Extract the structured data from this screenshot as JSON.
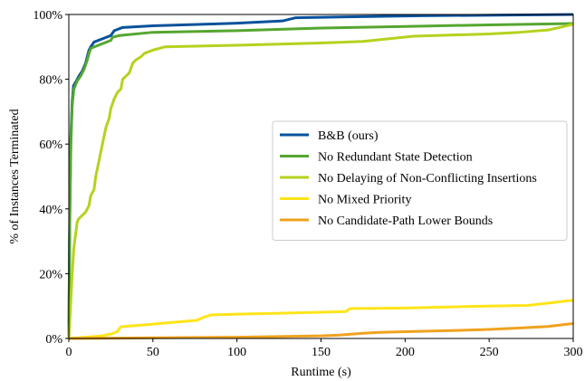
{
  "chart_data": {
    "type": "line",
    "title": "",
    "xlabel": "Runtime (s)",
    "ylabel": "% of Instances Terminated",
    "xlim": [
      0,
      300
    ],
    "ylim": [
      0,
      100
    ],
    "x_ticks": [
      0,
      50,
      100,
      150,
      200,
      250,
      300
    ],
    "x_tick_labels": [
      "0",
      "50",
      "100",
      "150",
      "200",
      "250",
      "300"
    ],
    "y_ticks": [
      0,
      20,
      40,
      60,
      80,
      100
    ],
    "y_tick_labels": [
      "0%",
      "20%",
      "40%",
      "60%",
      "80%",
      "100%"
    ],
    "grid": false,
    "legend_position": "center-right",
    "series": [
      {
        "name": "B&B (ours)",
        "color": "#08529c",
        "points": [
          [
            0,
            0
          ],
          [
            0.6,
            40
          ],
          [
            1.2,
            62
          ],
          [
            2,
            73
          ],
          [
            2.8,
            78
          ],
          [
            4.5,
            79.5
          ],
          [
            6,
            81
          ],
          [
            8,
            82.5
          ],
          [
            10,
            85
          ],
          [
            11,
            87
          ],
          [
            12,
            89
          ],
          [
            13,
            90
          ],
          [
            15,
            91.5
          ],
          [
            20,
            92.5
          ],
          [
            25,
            93.5
          ],
          [
            27,
            95
          ],
          [
            32,
            96
          ],
          [
            50,
            96.5
          ],
          [
            100,
            97.3
          ],
          [
            127,
            98
          ],
          [
            135,
            99
          ],
          [
            170,
            99.3
          ],
          [
            210,
            99.6
          ],
          [
            300,
            100
          ]
        ]
      },
      {
        "name": "No Redundant State Detection",
        "color": "#55a630",
        "points": [
          [
            0,
            0
          ],
          [
            0.6,
            38
          ],
          [
            1.2,
            60
          ],
          [
            2,
            72
          ],
          [
            3,
            77
          ],
          [
            5,
            79.5
          ],
          [
            7,
            81
          ],
          [
            9,
            83
          ],
          [
            11,
            86
          ],
          [
            12,
            88
          ],
          [
            13,
            89.5
          ],
          [
            15,
            90
          ],
          [
            20,
            91
          ],
          [
            25,
            92
          ],
          [
            26,
            93
          ],
          [
            30,
            93.5
          ],
          [
            50,
            94.5
          ],
          [
            100,
            95
          ],
          [
            150,
            95.8
          ],
          [
            200,
            96.3
          ],
          [
            250,
            96.8
          ],
          [
            300,
            97.2
          ]
        ]
      },
      {
        "name": "No Delaying of Non-Conflicting Insertions",
        "color": "#b5d21e",
        "points": [
          [
            0,
            0
          ],
          [
            1,
            10
          ],
          [
            2,
            20
          ],
          [
            3,
            28
          ],
          [
            4,
            32
          ],
          [
            5,
            36
          ],
          [
            6,
            37
          ],
          [
            8,
            38
          ],
          [
            10,
            39
          ],
          [
            12,
            41
          ],
          [
            13,
            44
          ],
          [
            15,
            46
          ],
          [
            16,
            50
          ],
          [
            18,
            55
          ],
          [
            20,
            60
          ],
          [
            22,
            65
          ],
          [
            24,
            68
          ],
          [
            25,
            71
          ],
          [
            27,
            74
          ],
          [
            29,
            76
          ],
          [
            31,
            77
          ],
          [
            32,
            80
          ],
          [
            34,
            81
          ],
          [
            36,
            82
          ],
          [
            38,
            85
          ],
          [
            40,
            86
          ],
          [
            43,
            87
          ],
          [
            45,
            88
          ],
          [
            50,
            89
          ],
          [
            57,
            90
          ],
          [
            100,
            90.5
          ],
          [
            150,
            91.2
          ],
          [
            175,
            91.7
          ],
          [
            190,
            92.5
          ],
          [
            205,
            93.3
          ],
          [
            250,
            94
          ],
          [
            268,
            94.5
          ],
          [
            285,
            95.2
          ],
          [
            292,
            96
          ],
          [
            300,
            97
          ]
        ]
      },
      {
        "name": "No Mixed Priority",
        "color": "#ffe419",
        "points": [
          [
            0,
            0
          ],
          [
            5,
            0.2
          ],
          [
            10,
            0.4
          ],
          [
            20,
            0.8
          ],
          [
            26,
            1.5
          ],
          [
            29,
            2.2
          ],
          [
            30,
            3
          ],
          [
            31,
            3.6
          ],
          [
            35,
            3.8
          ],
          [
            45,
            4.2
          ],
          [
            60,
            4.9
          ],
          [
            76,
            5.6
          ],
          [
            80,
            6.5
          ],
          [
            85,
            7.3
          ],
          [
            100,
            7.5
          ],
          [
            120,
            7.7
          ],
          [
            150,
            8.1
          ],
          [
            165,
            8.3
          ],
          [
            167,
            9.2
          ],
          [
            200,
            9.4
          ],
          [
            240,
            9.9
          ],
          [
            273,
            10.2
          ],
          [
            290,
            11.2
          ],
          [
            300,
            11.8
          ]
        ]
      },
      {
        "name": "No Candidate-Path Lower Bounds",
        "color": "#f0a21e",
        "points": [
          [
            0,
            0
          ],
          [
            50,
            0.2
          ],
          [
            100,
            0.4
          ],
          [
            150,
            0.8
          ],
          [
            160,
            1
          ],
          [
            175,
            1.6
          ],
          [
            185,
            1.9
          ],
          [
            200,
            2.1
          ],
          [
            225,
            2.4
          ],
          [
            250,
            2.8
          ],
          [
            270,
            3.3
          ],
          [
            285,
            3.7
          ],
          [
            293,
            4.2
          ],
          [
            300,
            4.6
          ]
        ]
      }
    ]
  }
}
